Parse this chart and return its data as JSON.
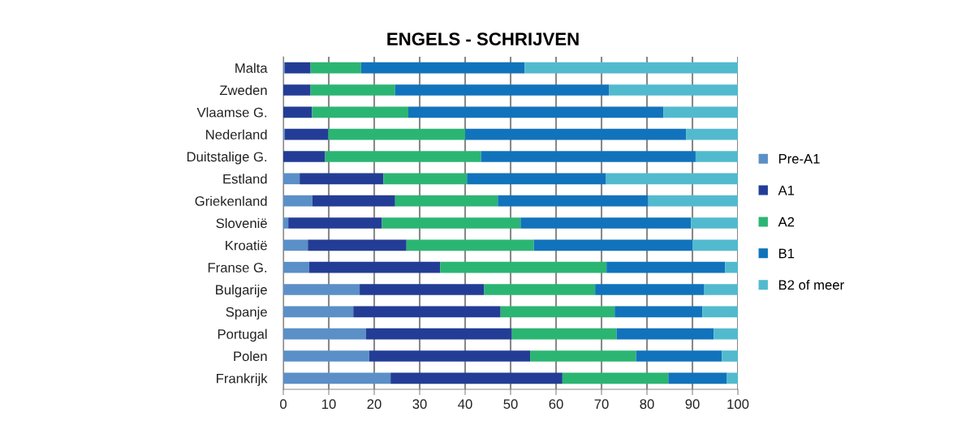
{
  "chart_data": {
    "type": "bar",
    "orientation": "horizontal",
    "stacked": true,
    "title": "ENGELS - SCHRIJVEN",
    "categories": [
      "Malta",
      "Zweden",
      "Vlaamse G.",
      "Nederland",
      "Duitstalige G.",
      "Estland",
      "Griekenland",
      "Slovenië",
      "Kroatië",
      "Franse G.",
      "Bulgarije",
      "Spanje",
      "Portugal",
      "Polen",
      "Frankrijk"
    ],
    "series": [
      {
        "name": "Pre-A1",
        "color": "#5b8fc7",
        "values": [
          0.3,
          0,
          0,
          0.3,
          0,
          3.6,
          6.4,
          1.1,
          5.4,
          5.7,
          16.8,
          15.4,
          18.2,
          18.9,
          23.6
        ]
      },
      {
        "name": "A1",
        "color": "#233d96",
        "values": [
          5.7,
          6.0,
          6.3,
          9.6,
          9.2,
          18.4,
          18.2,
          20.6,
          21.7,
          28.8,
          27.4,
          32.4,
          32.1,
          35.4,
          37.8
        ]
      },
      {
        "name": "A2",
        "color": "#2bb573",
        "values": [
          11.1,
          18.6,
          21.2,
          30.1,
          34.3,
          18.4,
          22.6,
          30.5,
          28.0,
          36.6,
          24.4,
          25.1,
          23.0,
          23.3,
          23.3
        ]
      },
      {
        "name": "B1",
        "color": "#1173bb",
        "values": [
          36.0,
          47.1,
          56.1,
          48.6,
          47.2,
          30.6,
          33.1,
          37.5,
          34.9,
          26.1,
          23.9,
          19.3,
          21.4,
          18.9,
          12.9
        ]
      },
      {
        "name": "B2 of meer",
        "color": "#52bace",
        "values": [
          46.9,
          28.3,
          16.4,
          11.4,
          9.3,
          29.0,
          19.7,
          10.3,
          10.0,
          2.8,
          7.5,
          7.8,
          5.3,
          3.5,
          2.4
        ]
      }
    ],
    "xlim": [
      0,
      100
    ],
    "xticks": [
      0,
      10,
      20,
      30,
      40,
      50,
      60,
      70,
      80,
      90,
      100
    ],
    "grid": "x",
    "legend": "right"
  }
}
